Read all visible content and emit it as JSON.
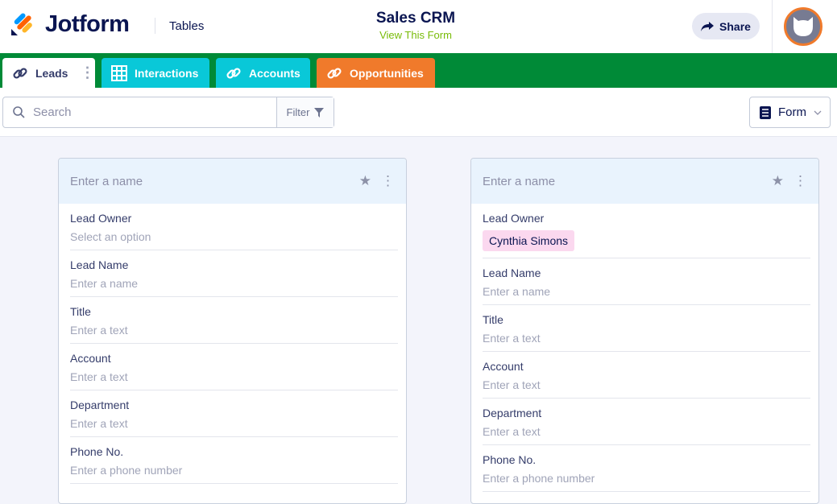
{
  "header": {
    "brand": "Jotform",
    "section": "Tables",
    "title": "Sales CRM",
    "view_form": "View This Form",
    "share": "Share"
  },
  "tabs": [
    {
      "label": "Leads",
      "icon": "link-icon",
      "color": "#ffffff"
    },
    {
      "label": "Interactions",
      "icon": "grid-icon",
      "color": "#09c8d8"
    },
    {
      "label": "Accounts",
      "icon": "link-icon",
      "color": "#09c8d8"
    },
    {
      "label": "Opportunities",
      "icon": "link-icon",
      "color": "#f07a2b"
    }
  ],
  "toolbar": {
    "search_placeholder": "Search",
    "filter": "Filter",
    "form": "Form"
  },
  "cards": [
    {
      "name_placeholder": "Enter a name",
      "fields": [
        {
          "label": "Lead Owner",
          "value": "Select an option"
        },
        {
          "label": "Lead Name",
          "value": "Enter a name"
        },
        {
          "label": "Title",
          "value": "Enter a text"
        },
        {
          "label": "Account",
          "value": "Enter a text"
        },
        {
          "label": "Department",
          "value": "Enter a text"
        },
        {
          "label": "Phone No.",
          "value": "Enter a phone number"
        }
      ]
    },
    {
      "name_placeholder": "Enter a name",
      "fields": [
        {
          "label": "Lead Owner",
          "chip": "Cynthia Simons"
        },
        {
          "label": "Lead Name",
          "value": "Enter a name"
        },
        {
          "label": "Title",
          "value": "Enter a text"
        },
        {
          "label": "Account",
          "value": "Enter a text"
        },
        {
          "label": "Department",
          "value": "Enter a text"
        },
        {
          "label": "Phone No.",
          "value": "Enter a phone number"
        }
      ]
    }
  ]
}
